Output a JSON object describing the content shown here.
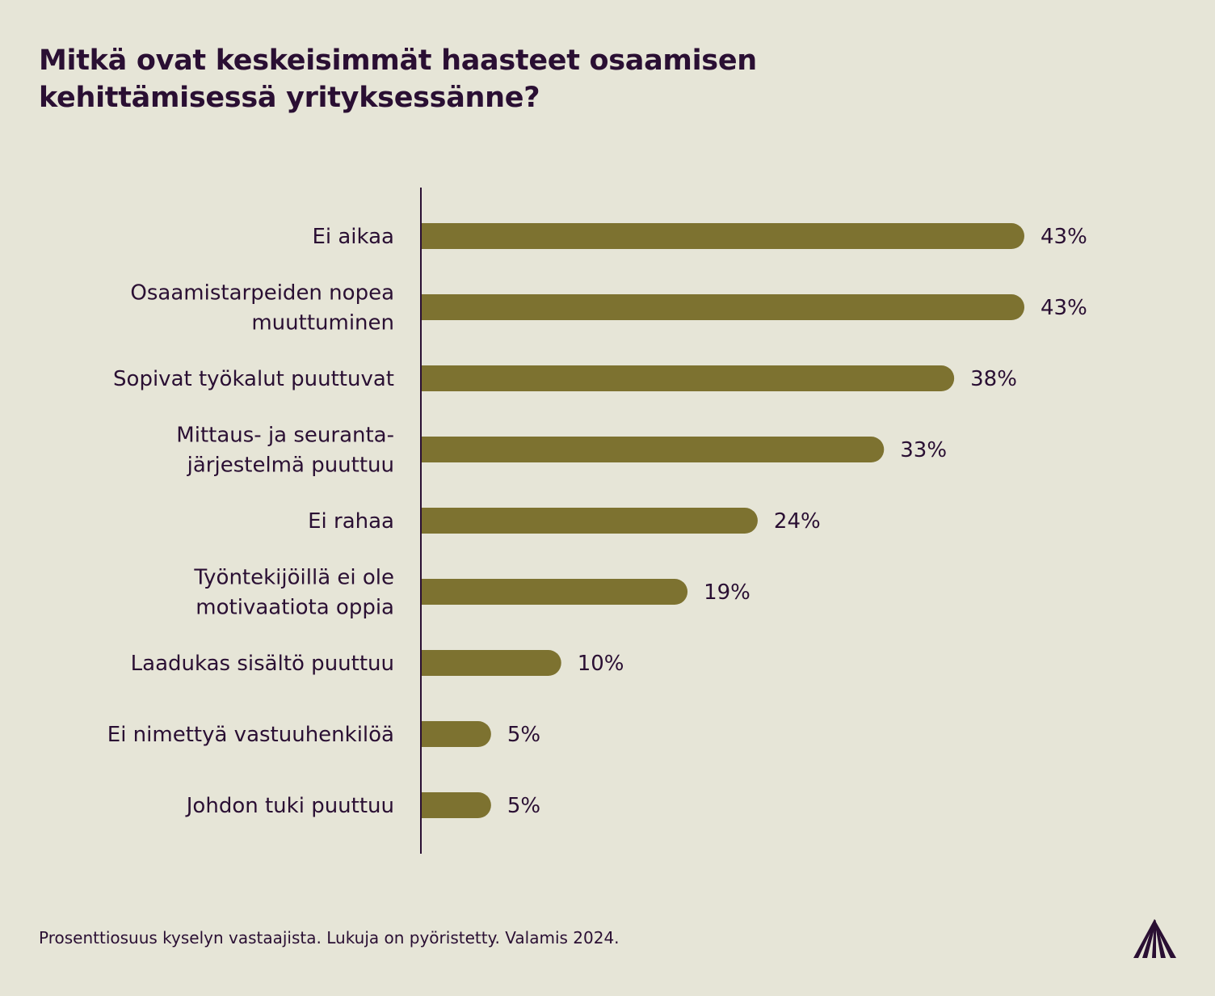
{
  "title_lines": [
    "Mitkä ovat keskeisimmät haasteet osaamisen",
    "kehittämisessä yrityksessänne?"
  ],
  "footnote": "Prosenttiosuus kyselyn vastaajista. Lukuja on pyöristetty. Valamis 2024.",
  "logo_icon": "valamis-logo-icon",
  "colors": {
    "background": "#e6e5d7",
    "bar": "#7d7230",
    "text": "#2a0f33",
    "axis": "#2a0f33"
  },
  "chart_data": {
    "type": "bar",
    "orientation": "horizontal",
    "categories": [
      [
        "Ei aikaa"
      ],
      [
        "Osaamistarpeiden nopea",
        "muuttuminen"
      ],
      [
        "Sopivat työkalut puuttuvat"
      ],
      [
        "Mittaus- ja seuranta-",
        "järjestelmä puuttuu"
      ],
      [
        "Ei rahaa"
      ],
      [
        "Työntekijöillä ei ole",
        "motivaatiota oppia"
      ],
      [
        "Laadukas sisältö puuttuu"
      ],
      [
        "Ei nimettyä vastuuhenkilöä"
      ],
      [
        "Johdon tuki puuttuu"
      ]
    ],
    "values": [
      43,
      43,
      38,
      33,
      24,
      19,
      10,
      5,
      5
    ],
    "value_labels": [
      "43%",
      "43%",
      "38%",
      "33%",
      "24%",
      "19%",
      "10%",
      "5%",
      "5%"
    ],
    "unit": "%",
    "xlim": [
      0,
      43
    ],
    "grid": false,
    "legend": "none"
  }
}
